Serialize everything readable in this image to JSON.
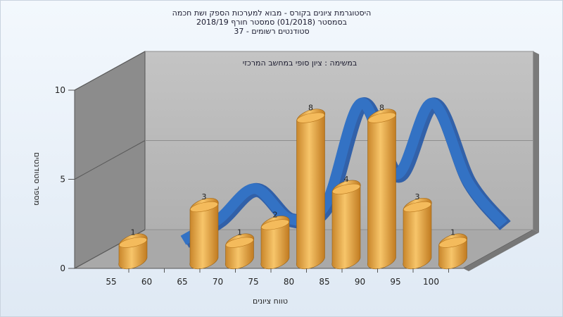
{
  "titles": [
    "היסטוגרמת ציונים בקורס - מבוא למערכות הספק ושת חכמה",
    "בסמסטר  (01/2018)  סמסטר חורף  2018/19",
    "סטודנטים רשומים - 37"
  ],
  "chart_data": {
    "type": "bar",
    "subtitle": "במשימה : ציון סופי במחשב המרכזי",
    "xlabel": "טווח ציונים",
    "ylabel": "מספר סטודנטים",
    "x_ticks": [
      "55",
      "60",
      "65",
      "70",
      "75",
      "80",
      "85",
      "90",
      "95",
      "100"
    ],
    "y_ticks": [
      "0",
      "5",
      "10"
    ],
    "ylim": [
      0,
      10
    ],
    "categories": [
      "55",
      "60",
      "65",
      "70",
      "75",
      "80",
      "85",
      "90",
      "95",
      "100"
    ],
    "values": [
      1,
      0,
      3,
      1,
      2,
      8,
      4,
      8,
      3,
      1
    ],
    "labels": [
      "1",
      "",
      "3",
      "1",
      "2",
      "8",
      "4",
      "8",
      "3",
      "1"
    ],
    "curve": {
      "type": "line",
      "x": [
        60,
        65,
        70,
        75,
        80,
        85,
        90,
        95,
        100,
        105
      ],
      "y": [
        0.3,
        1.5,
        3.2,
        1.5,
        2.3,
        8.0,
        4.0,
        8.0,
        3.6,
        1.2
      ]
    },
    "colors": {
      "bar": "#e8a84a",
      "curve": "#3372c4",
      "wall": "#b9b9b9",
      "side_wall": "#8a8a8a"
    },
    "grid": true
  }
}
